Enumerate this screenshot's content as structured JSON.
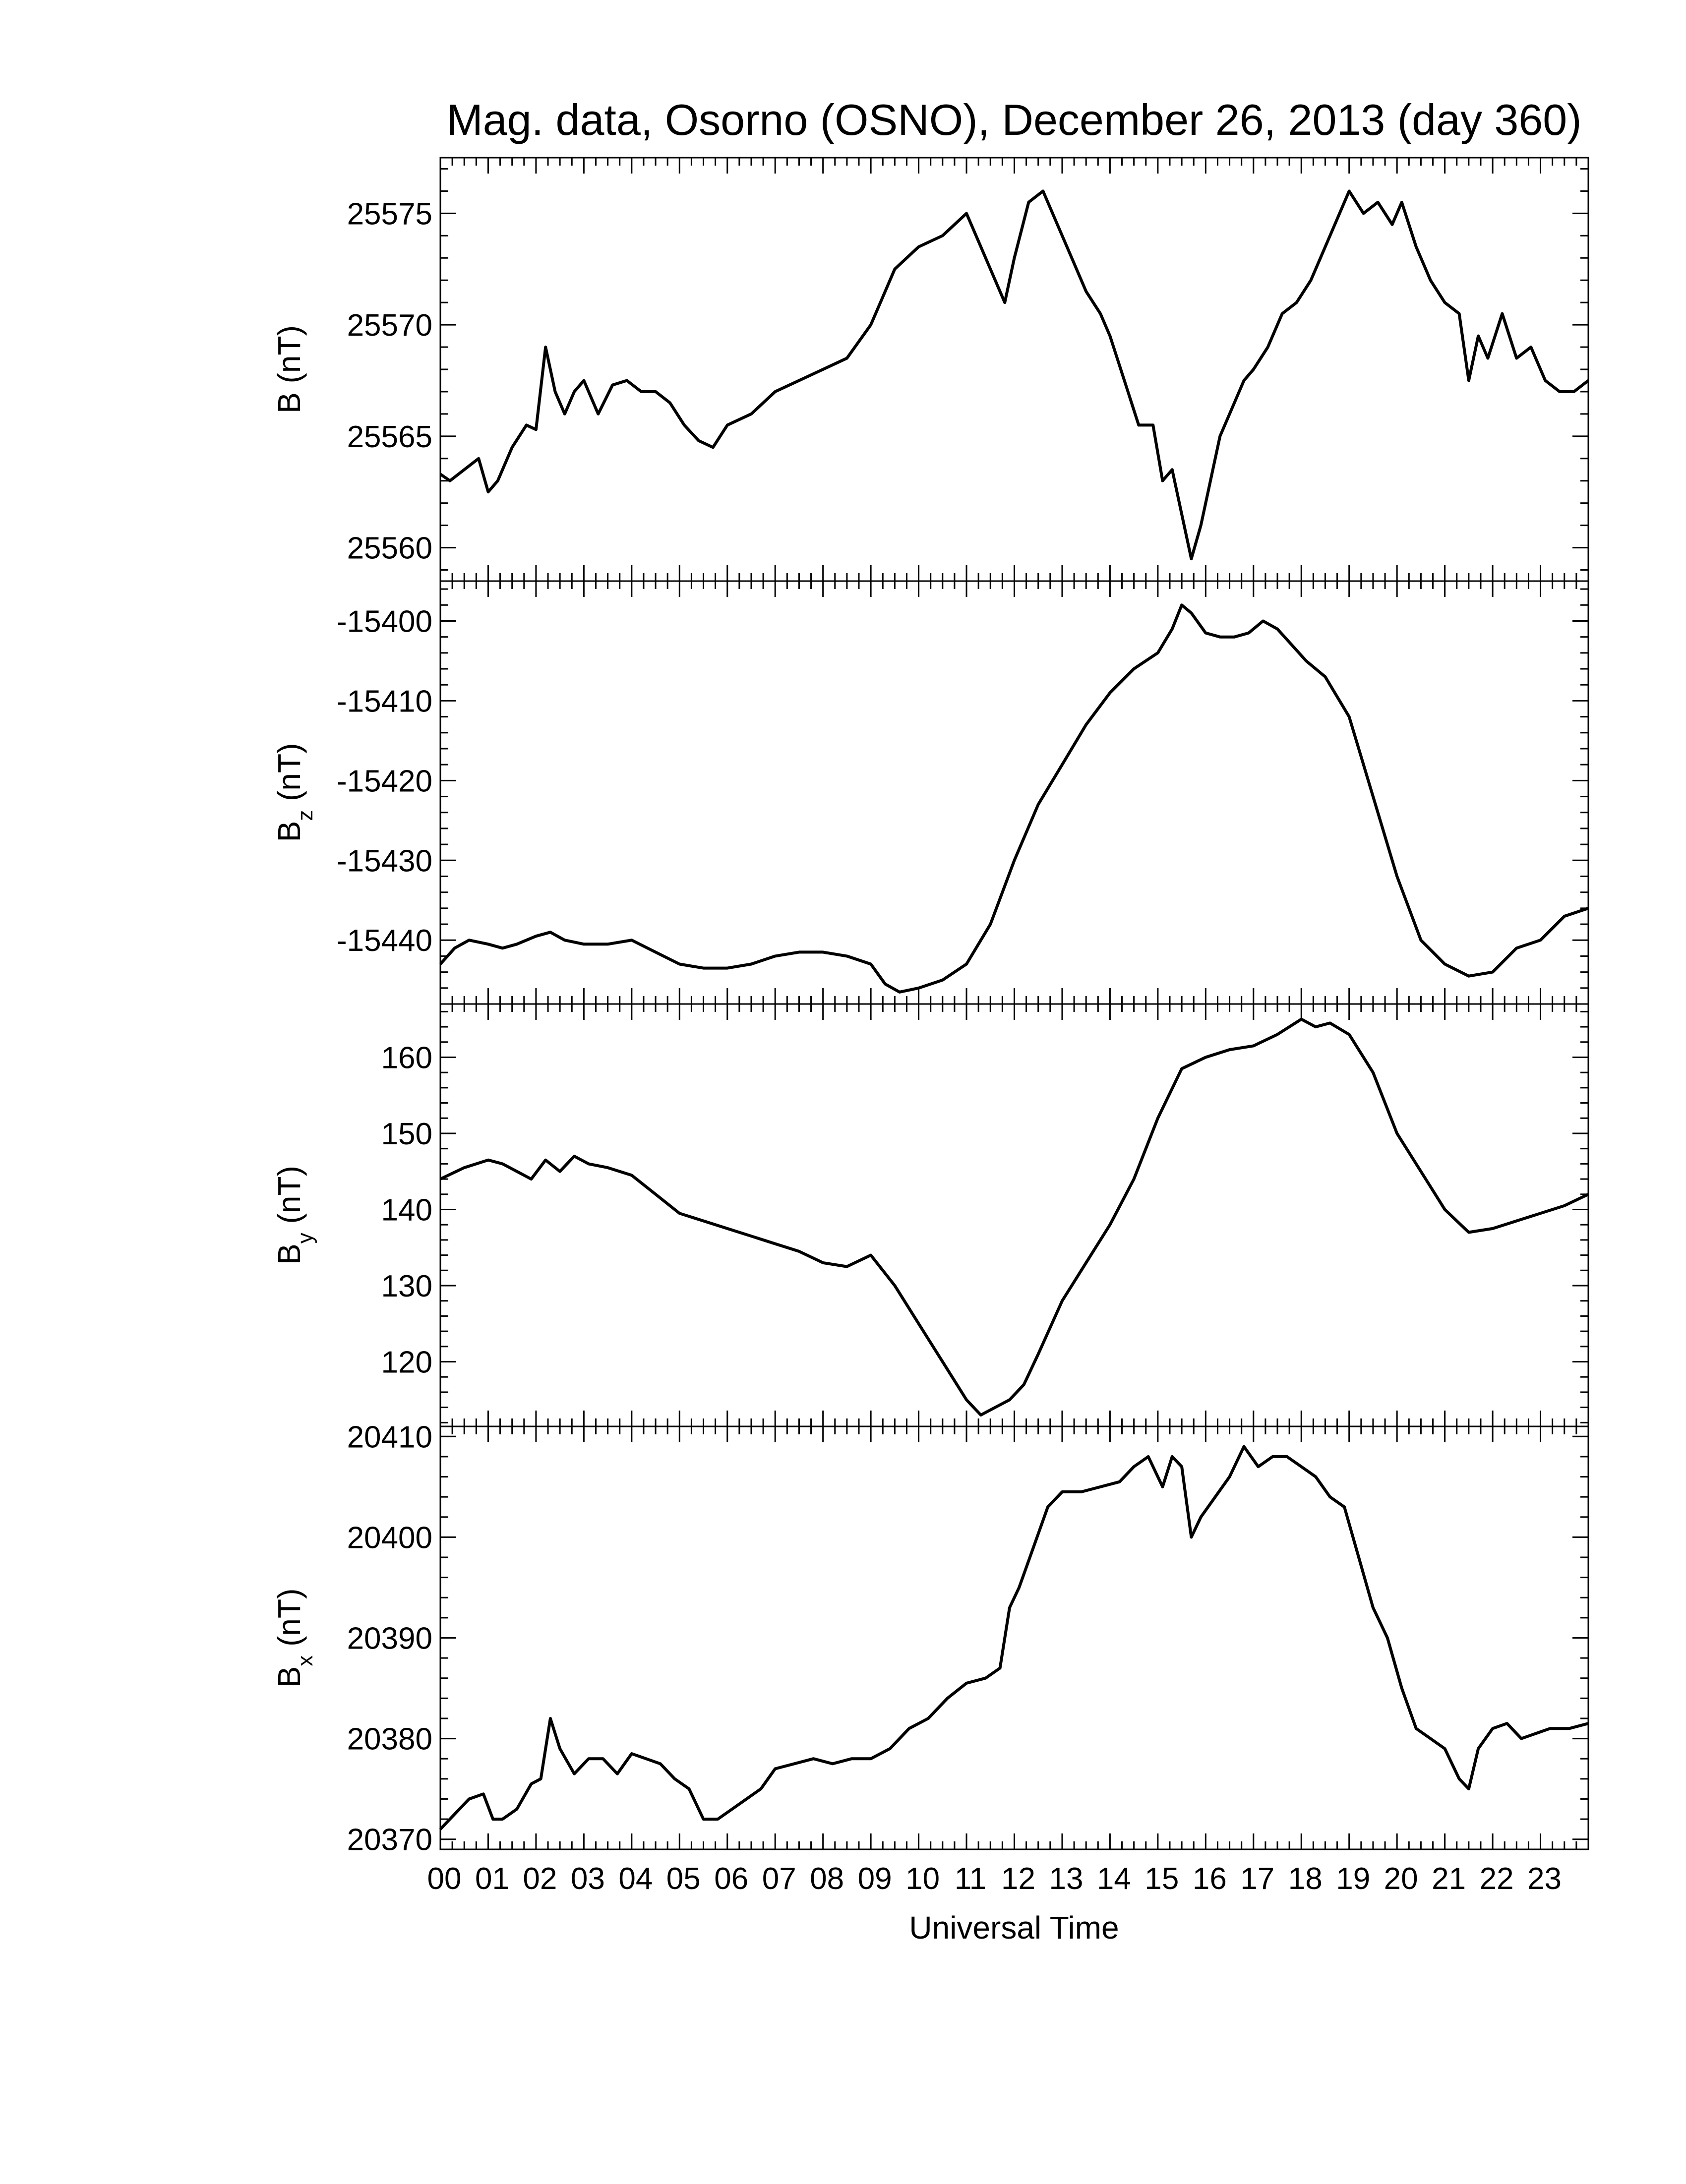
{
  "title": "Mag. data, Osorno (OSNO), December 26, 2013 (day 360)",
  "xlabel": "Universal Time",
  "x_tick_labels": [
    "00",
    "01",
    "02",
    "03",
    "04",
    "05",
    "06",
    "07",
    "08",
    "09",
    "10",
    "11",
    "12",
    "13",
    "14",
    "15",
    "16",
    "17",
    "18",
    "19",
    "20",
    "21",
    "22",
    "23"
  ],
  "line_color": "#000000",
  "chart_data": [
    {
      "type": "line",
      "ylabel_main": "B",
      "ylabel_sub": "",
      "ylabel_unit": "(nT)",
      "xlim": [
        0,
        24
      ],
      "ylim": [
        25558.5,
        25577.5
      ],
      "yticks": [
        25560,
        25565,
        25570,
        25575
      ],
      "x": [
        0,
        0.2,
        0.5,
        0.8,
        1.0,
        1.2,
        1.5,
        1.8,
        2.0,
        2.2,
        2.4,
        2.6,
        2.8,
        3.0,
        3.3,
        3.6,
        3.9,
        4.2,
        4.5,
        4.8,
        5.1,
        5.4,
        5.7,
        6.0,
        6.5,
        7.0,
        7.5,
        8.0,
        8.5,
        9.0,
        9.5,
        10.0,
        10.5,
        11.0,
        11.3,
        11.6,
        11.8,
        12.0,
        12.3,
        12.6,
        12.9,
        13.2,
        13.5,
        13.8,
        14.0,
        14.3,
        14.6,
        14.9,
        15.1,
        15.3,
        15.5,
        15.7,
        15.9,
        16.1,
        16.3,
        16.5,
        16.8,
        17.0,
        17.3,
        17.6,
        17.9,
        18.2,
        18.5,
        18.8,
        19.0,
        19.3,
        19.6,
        19.9,
        20.1,
        20.4,
        20.7,
        21.0,
        21.3,
        21.5,
        21.7,
        21.9,
        22.2,
        22.5,
        22.8,
        23.1,
        23.4,
        23.7,
        24.0
      ],
      "y": [
        25563.3,
        25563.0,
        25563.5,
        25564.0,
        25562.5,
        25563.0,
        25564.5,
        25565.5,
        25565.3,
        25569.0,
        25567.0,
        25566.0,
        25567.0,
        25567.5,
        25566.0,
        25567.3,
        25567.5,
        25567.0,
        25567.0,
        25566.5,
        25565.5,
        25564.8,
        25564.5,
        25565.5,
        25566.0,
        25567.0,
        25567.5,
        25568.0,
        25568.5,
        25570.0,
        25572.5,
        25573.5,
        25574.0,
        25575.0,
        25573.5,
        25572.0,
        25571.0,
        25573.0,
        25575.5,
        25576.0,
        25574.5,
        25573.0,
        25571.5,
        25570.5,
        25569.5,
        25567.5,
        25565.5,
        25565.5,
        25563.0,
        25563.5,
        25561.5,
        25559.5,
        25561.0,
        25563.0,
        25565.0,
        25566.0,
        25567.5,
        25568.0,
        25569.0,
        25570.5,
        25571.0,
        25572.0,
        25573.5,
        25575.0,
        25576.0,
        25575.0,
        25575.5,
        25574.5,
        25575.5,
        25573.5,
        25572.0,
        25571.0,
        25570.5,
        25567.5,
        25569.5,
        25568.5,
        25570.5,
        25568.5,
        25569.0,
        25567.5,
        25567.0,
        25567.0,
        25567.5
      ]
    },
    {
      "type": "line",
      "ylabel_main": "B",
      "ylabel_sub": "z",
      "ylabel_unit": "(nT)",
      "xlim": [
        0,
        24
      ],
      "ylim": [
        -15448.0,
        -15395.0
      ],
      "yticks": [
        -15440,
        -15430,
        -15420,
        -15410,
        -15400
      ],
      "x": [
        0,
        0.3,
        0.6,
        1.0,
        1.3,
        1.6,
        2.0,
        2.3,
        2.6,
        3.0,
        3.5,
        4.0,
        4.5,
        5.0,
        5.5,
        6.0,
        6.5,
        7.0,
        7.5,
        8.0,
        8.5,
        9.0,
        9.3,
        9.6,
        10.0,
        10.5,
        11.0,
        11.5,
        12.0,
        12.5,
        13.0,
        13.5,
        14.0,
        14.5,
        15.0,
        15.3,
        15.5,
        15.7,
        16.0,
        16.3,
        16.6,
        16.9,
        17.2,
        17.5,
        17.8,
        18.1,
        18.5,
        19.0,
        19.5,
        20.0,
        20.5,
        21.0,
        21.5,
        22.0,
        22.5,
        23.0,
        23.5,
        24.0
      ],
      "y": [
        -15443,
        -15441,
        -15440,
        -15440.5,
        -15441,
        -15440.5,
        -15439.5,
        -15439,
        -15440,
        -15440.5,
        -15440.5,
        -15440,
        -15441.5,
        -15443,
        -15443.5,
        -15443.5,
        -15443,
        -15442,
        -15441.5,
        -15441.5,
        -15442,
        -15443,
        -15445.5,
        -15446.5,
        -15446,
        -15445,
        -15443,
        -15438,
        -15430,
        -15423,
        -15418,
        -15413,
        -15409,
        -15406,
        -15404,
        -15401,
        -15398,
        -15399,
        -15401.5,
        -15402,
        -15402,
        -15401.5,
        -15400,
        -15401,
        -15403,
        -15405,
        -15407,
        -15412,
        -15422,
        -15432,
        -15440,
        -15443,
        -15444.5,
        -15444,
        -15441,
        -15440,
        -15437,
        -15436
      ]
    },
    {
      "type": "line",
      "ylabel_main": "B",
      "ylabel_sub": "y",
      "ylabel_unit": "(nT)",
      "xlim": [
        0,
        24
      ],
      "ylim": [
        111.5,
        167.0
      ],
      "yticks": [
        120,
        130,
        140,
        150,
        160
      ],
      "x": [
        0,
        0.5,
        1.0,
        1.3,
        1.6,
        1.9,
        2.2,
        2.5,
        2.8,
        3.1,
        3.5,
        4.0,
        4.5,
        5.0,
        5.5,
        6.0,
        6.5,
        7.0,
        7.5,
        8.0,
        8.5,
        9.0,
        9.5,
        10.0,
        10.5,
        11.0,
        11.3,
        11.6,
        11.9,
        12.2,
        12.5,
        13.0,
        13.5,
        14.0,
        14.5,
        15.0,
        15.5,
        16.0,
        16.5,
        17.0,
        17.5,
        18.0,
        18.3,
        18.6,
        19.0,
        19.5,
        20.0,
        20.5,
        21.0,
        21.5,
        22.0,
        22.5,
        23.0,
        23.5,
        24.0
      ],
      "y": [
        144,
        145.5,
        146.5,
        146,
        145,
        144,
        146.5,
        145,
        147,
        146,
        145.5,
        144.5,
        142,
        139.5,
        138.5,
        137.5,
        136.5,
        135.5,
        134.5,
        133,
        132.5,
        134,
        130,
        125,
        120,
        115,
        113,
        114,
        115,
        117,
        121,
        128,
        133,
        138,
        144,
        152,
        158.5,
        160,
        161,
        161.5,
        163,
        165,
        164,
        164.5,
        163,
        158,
        150,
        145,
        140,
        137,
        137.5,
        138.5,
        139.5,
        140.5,
        142
      ]
    },
    {
      "type": "line",
      "ylabel_main": "B",
      "ylabel_sub": "x",
      "ylabel_unit": "(nT)",
      "xlim": [
        0,
        24
      ],
      "ylim": [
        20369.0,
        20411.0
      ],
      "yticks": [
        20370,
        20380,
        20390,
        20400,
        20410
      ],
      "x": [
        0,
        0.3,
        0.6,
        0.9,
        1.1,
        1.3,
        1.6,
        1.9,
        2.1,
        2.3,
        2.5,
        2.8,
        3.1,
        3.4,
        3.7,
        4.0,
        4.3,
        4.6,
        4.9,
        5.2,
        5.5,
        5.8,
        6.1,
        6.4,
        6.7,
        7.0,
        7.4,
        7.8,
        8.2,
        8.6,
        9.0,
        9.4,
        9.8,
        10.2,
        10.6,
        11.0,
        11.4,
        11.7,
        11.9,
        12.1,
        12.4,
        12.7,
        13.0,
        13.4,
        13.8,
        14.2,
        14.5,
        14.8,
        15.1,
        15.3,
        15.5,
        15.7,
        15.9,
        16.2,
        16.5,
        16.8,
        17.1,
        17.4,
        17.7,
        18.0,
        18.3,
        18.6,
        18.9,
        19.2,
        19.5,
        19.8,
        20.1,
        20.4,
        20.7,
        21.0,
        21.3,
        21.5,
        21.7,
        22.0,
        22.3,
        22.6,
        22.9,
        23.2,
        23.6,
        24.0
      ],
      "y": [
        20371,
        20372.5,
        20374,
        20374.5,
        20372,
        20372,
        20373,
        20375.5,
        20376,
        20382,
        20379,
        20376.5,
        20378,
        20378,
        20376.5,
        20378.5,
        20378,
        20377.5,
        20376,
        20375,
        20372,
        20372,
        20373,
        20374,
        20375,
        20377,
        20377.5,
        20378,
        20377.5,
        20378,
        20378,
        20379,
        20381,
        20382,
        20384,
        20385.5,
        20386,
        20387,
        20393,
        20395,
        20399,
        20403,
        20404.5,
        20404.5,
        20405,
        20405.5,
        20407,
        20408,
        20405,
        20408,
        20407,
        20400,
        20402,
        20404,
        20406,
        20409,
        20407,
        20408,
        20408,
        20407,
        20406,
        20404,
        20403,
        20398,
        20393,
        20390,
        20385,
        20381,
        20380,
        20379,
        20376,
        20375,
        20379,
        20381,
        20381.5,
        20380,
        20380.5,
        20381,
        20381,
        20381.5
      ]
    }
  ]
}
